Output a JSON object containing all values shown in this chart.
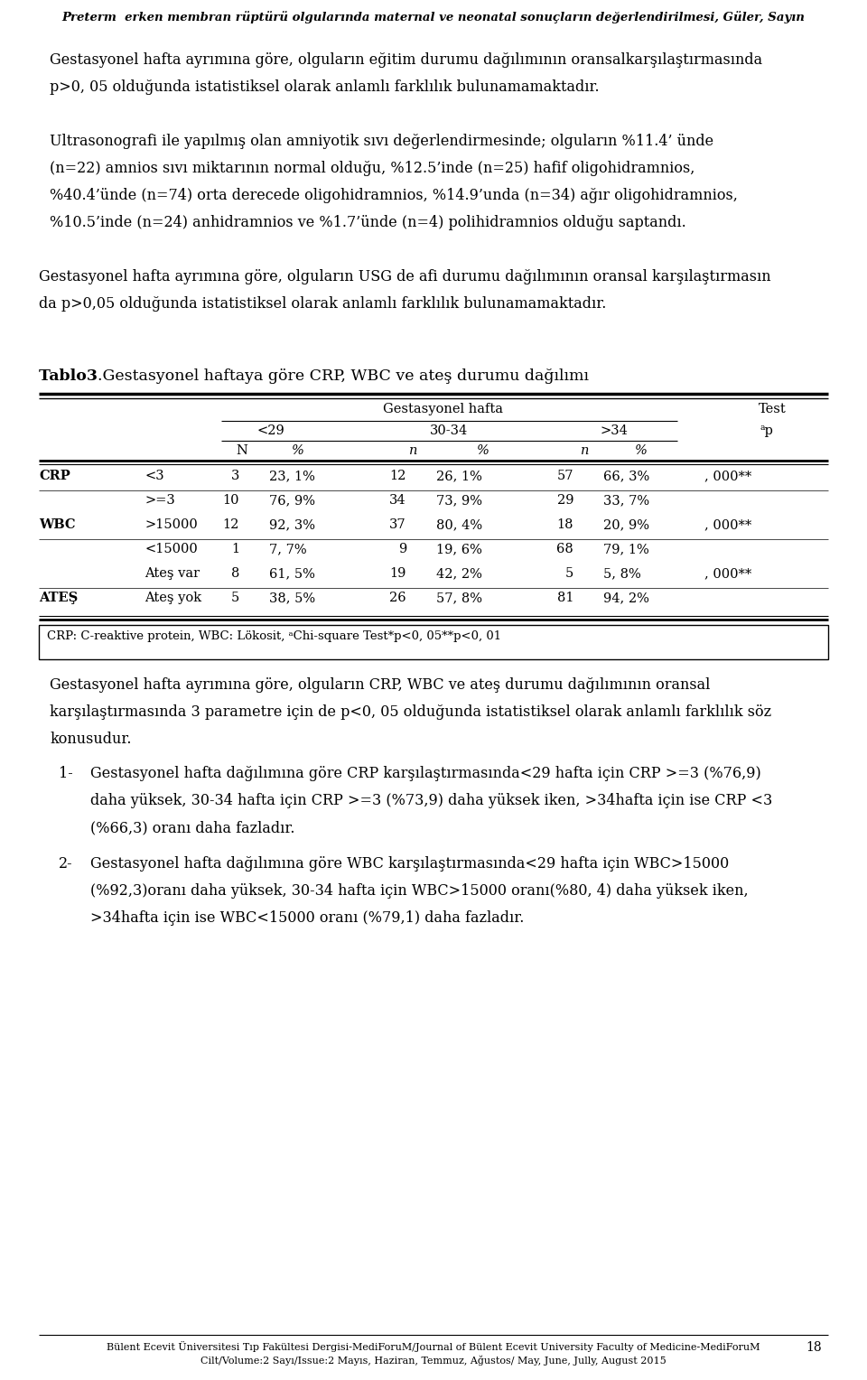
{
  "header": "Preterm  erken membran rüptürü olgularında maternal ve neonatal sonuçların değerlendirilmesi, Güler, Sayın",
  "rows": [
    {
      "group": "CRP",
      "sub": "<3",
      "n1": "3",
      "p1": "23, 1%",
      "n2": "12",
      "p2": "26, 1%",
      "n3": "57",
      "p3": "66, 3%",
      "test": ", 000**"
    },
    {
      "group": "",
      "sub": ">=3",
      "n1": "10",
      "p1": "76, 9%",
      "n2": "34",
      "p2": "73, 9%",
      "n3": "29",
      "p3": "33, 7%",
      "test": ""
    },
    {
      "group": "WBC",
      "sub": ">15000",
      "n1": "12",
      "p1": "92, 3%",
      "n2": "37",
      "p2": "80, 4%",
      "n3": "18",
      "p3": "20, 9%",
      "test": ", 000**"
    },
    {
      "group": "",
      "sub": "<15000",
      "n1": "1",
      "p1": "7, 7%",
      "n2": "9",
      "p2": "19, 6%",
      "n3": "68",
      "p3": "79, 1%",
      "test": ""
    },
    {
      "group": "",
      "sub": "Ateş var",
      "n1": "8",
      "p1": "61, 5%",
      "n2": "19",
      "p2": "42, 2%",
      "n3": "5",
      "p3": "5, 8%",
      "test": ", 000**"
    },
    {
      "group": "ATEŞ",
      "sub": "Ateş yok",
      "n1": "5",
      "p1": "38, 5%",
      "n2": "26",
      "p2": "57, 8%",
      "n3": "81",
      "p3": "94, 2%",
      "test": ""
    }
  ],
  "footnote": "CRP: C-reaktive protein, WBC: Lökosit, ᵃChi-square Test*p<0, 05**p<0, 01",
  "footer1": "Bülent Ecevit Üniversitesi Tıp Fakültesi Dergisi-MediForuM/Journal of Bülent Ecevit University Faculty of Medicine-MediForuM",
  "footer2": "Cilt/Volume:2 Sayı/Issue:2 Mayıs, Haziran, Temmuz, Ağustos/ May, June, Jully, August 2015"
}
